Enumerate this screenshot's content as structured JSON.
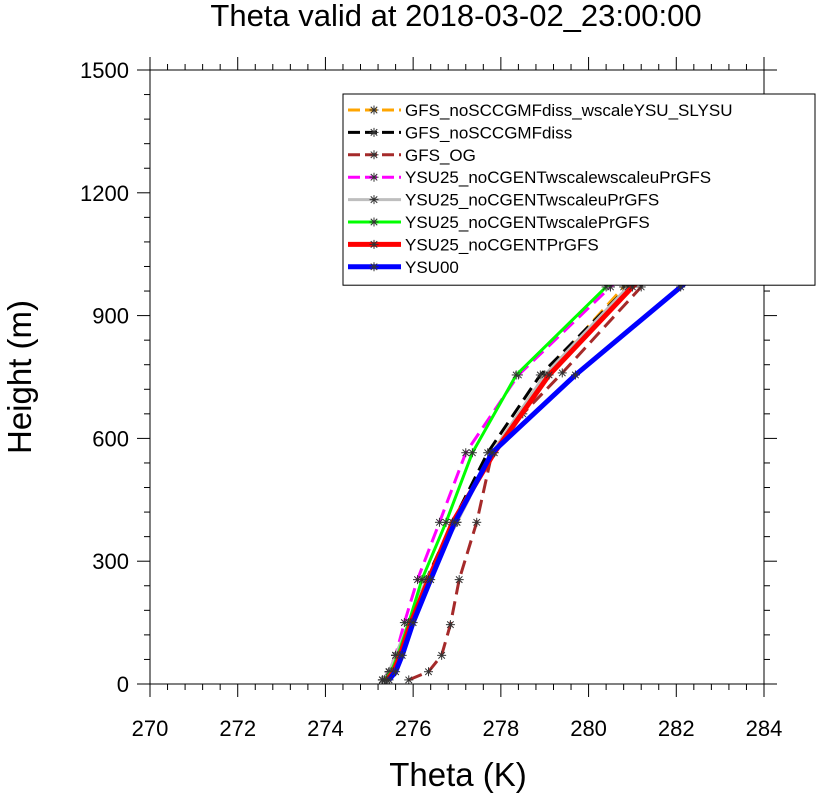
{
  "chart_data": {
    "type": "line",
    "title": "Theta valid at 2018-03-02_23:00:00",
    "xlabel": "Theta (K)",
    "ylabel": "Height (m)",
    "xlim": [
      270,
      284
    ],
    "ylim": [
      0,
      1500
    ],
    "xticks": [
      270,
      272,
      274,
      276,
      278,
      280,
      282,
      284
    ],
    "yticks": [
      0,
      300,
      600,
      900,
      1200,
      1500
    ],
    "x_tick_labels": [
      "270",
      "272",
      "274",
      "276",
      "278",
      "280",
      "282",
      "284"
    ],
    "y_tick_labels": [
      "0",
      "300",
      "600",
      "900",
      "1200",
      "1500"
    ],
    "grid": false,
    "legend_position": "top-right",
    "series": [
      {
        "name": "GFS_noSCCGMFdiss_wscaleYSU_SLYSU",
        "color": "#ffa500",
        "dash": "long-dash",
        "width": 3,
        "marker": "asterisk",
        "x": [
          275.3,
          275.45,
          275.6,
          275.9,
          276.3,
          277.0,
          277.8,
          279.0,
          280.8,
          282.4,
          284.0
        ],
        "y": [
          10,
          30,
          70,
          150,
          255,
          395,
          565,
          755,
          970,
          1120,
          1260
        ]
      },
      {
        "name": "GFS_noSCCGMFdiss",
        "color": "#000000",
        "dash": "long-dash",
        "width": 3,
        "marker": "asterisk",
        "x": [
          275.3,
          275.45,
          275.6,
          275.9,
          276.3,
          276.9,
          277.7,
          278.9,
          280.9,
          282.5,
          284.0
        ],
        "y": [
          10,
          30,
          70,
          150,
          255,
          395,
          565,
          755,
          970,
          1120,
          1265
        ]
      },
      {
        "name": "GFS_OG",
        "color": "#a52a2a",
        "dash": "long-dash",
        "width": 3,
        "marker": "asterisk",
        "x": [
          275.9,
          276.35,
          276.65,
          276.85,
          277.05,
          277.45,
          277.8,
          278.5,
          279.4,
          281.2,
          282.8,
          284.0
        ],
        "y": [
          10,
          30,
          70,
          145,
          255,
          395,
          565,
          660,
          760,
          970,
          1140,
          1270
        ]
      },
      {
        "name": "YSU25_noCGENTwscalewscaleuPrGFS",
        "color": "#ff00ff",
        "dash": "long-dash",
        "width": 3,
        "marker": "asterisk",
        "x": [
          275.3,
          275.45,
          275.6,
          275.8,
          276.1,
          276.6,
          277.2,
          278.4,
          280.5,
          282.4,
          284.0
        ],
        "y": [
          10,
          30,
          70,
          150,
          255,
          395,
          565,
          755,
          970,
          1150,
          1310
        ]
      },
      {
        "name": "YSU25_noCGENTwscaleuPrGFS",
        "color": "#bebebe",
        "dash": "solid",
        "width": 3,
        "marker": "asterisk",
        "x": [
          275.3,
          275.45,
          275.6,
          275.9,
          276.3,
          277.0,
          277.8,
          279.0,
          280.9,
          282.5,
          284.0
        ],
        "y": [
          10,
          30,
          70,
          150,
          255,
          395,
          565,
          755,
          970,
          1110,
          1235
        ]
      },
      {
        "name": "YSU25_noCGENTwscalePrGFS",
        "color": "#00ff00",
        "dash": "solid",
        "width": 3,
        "marker": "asterisk",
        "x": [
          275.35,
          275.5,
          275.65,
          275.9,
          276.2,
          276.75,
          277.35,
          278.35,
          280.4,
          282.3,
          284.0
        ],
        "y": [
          10,
          30,
          70,
          150,
          255,
          395,
          565,
          755,
          970,
          1160,
          1330
        ]
      },
      {
        "name": "YSU25_noCGENTPrGFS",
        "color": "#ff0000",
        "dash": "solid",
        "width": 5,
        "marker": "asterisk",
        "x": [
          275.4,
          275.55,
          275.7,
          275.95,
          276.35,
          276.9,
          277.85,
          279.1,
          281.0,
          282.6,
          284.0
        ],
        "y": [
          10,
          30,
          70,
          150,
          255,
          395,
          565,
          755,
          970,
          1130,
          1265
        ]
      },
      {
        "name": "YSU00",
        "color": "#0000ff",
        "dash": "solid",
        "width": 5,
        "marker": "asterisk",
        "x": [
          275.45,
          275.6,
          275.75,
          276.0,
          276.4,
          276.95,
          277.8,
          279.7,
          282.1,
          284.0
        ],
        "y": [
          10,
          30,
          70,
          150,
          255,
          395,
          565,
          755,
          970,
          1150
        ]
      }
    ]
  }
}
